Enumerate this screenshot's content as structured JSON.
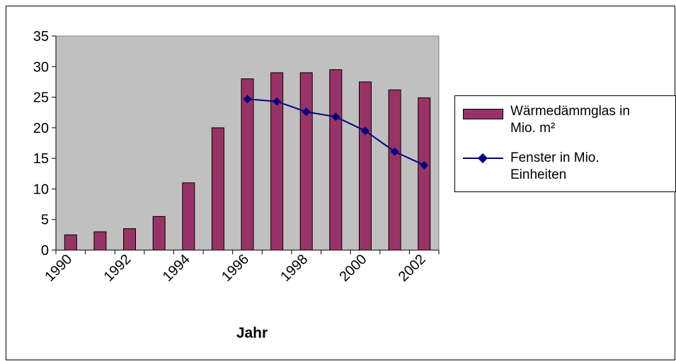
{
  "chart_data": {
    "type": "bar",
    "title": "",
    "xlabel": "Jahr",
    "ylabel": "",
    "ylim": [
      0,
      35
    ],
    "yticks": [
      0,
      5,
      10,
      15,
      20,
      25,
      30,
      35
    ],
    "grid": false,
    "legend_position": "right",
    "categories": [
      "1990",
      "1991",
      "1992",
      "1993",
      "1994",
      "1995",
      "1996",
      "1997",
      "1998",
      "1999",
      "2000",
      "2001",
      "2002"
    ],
    "tick_labels": [
      "1990",
      "1992",
      "1994",
      "1996",
      "1998",
      "2000",
      "2002"
    ],
    "series": [
      {
        "name": "Wärmedämmglas in Mio. m²",
        "type": "bar",
        "color": "#993366",
        "values": [
          2.5,
          3.0,
          3.5,
          5.5,
          11.0,
          20.0,
          28.0,
          29.0,
          29.0,
          29.5,
          27.5,
          26.2,
          24.9
        ]
      },
      {
        "name": "Fenster in Mio. Einheiten",
        "type": "line",
        "color": "#000080",
        "marker": "diamond",
        "values": [
          null,
          null,
          null,
          null,
          null,
          null,
          24.7,
          24.3,
          22.6,
          21.8,
          19.5,
          16.1,
          13.9
        ]
      }
    ],
    "plot_background": "#c0c0c0"
  },
  "legend": {
    "bar_label_line1": "Wärmedämmglas in",
    "bar_label_line2": "Mio. m²",
    "line_label_line1": "Fenster in Mio.",
    "line_label_line2": "Einheiten"
  }
}
